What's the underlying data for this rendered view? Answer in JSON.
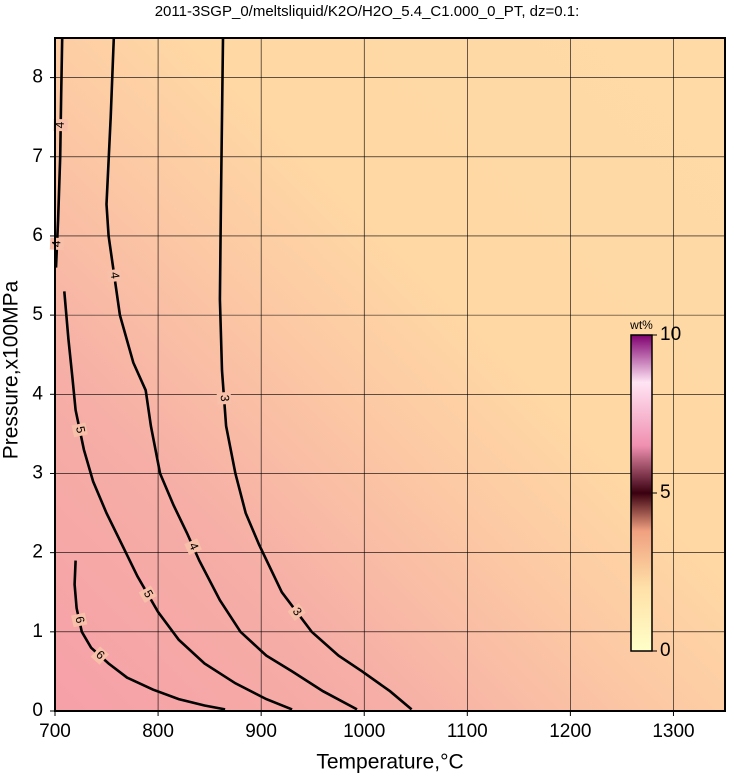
{
  "chart_data": {
    "type": "contour",
    "title": "2011-3SGP_0/meltsliquid/K2O/H2O_5.4_C1.000_0_PT, dz=0.1:",
    "x_label": "Temperature,°C",
    "y_label": "Pressure,x100MPa",
    "xlim": [
      700,
      1350
    ],
    "ylim": [
      0,
      8.5
    ],
    "xticks": [
      700,
      800,
      900,
      1000,
      1100,
      1200,
      1300
    ],
    "yticks": [
      0,
      1,
      2,
      3,
      4,
      5,
      6,
      7,
      8
    ],
    "grid": true,
    "color": "#000000",
    "colorbar": {
      "label": "wt%",
      "lim": [
        0,
        10
      ],
      "ticks": [
        0,
        5,
        10
      ]
    },
    "contours": [
      {
        "level": 3,
        "x": [
          863,
          862,
          861,
          860,
          862,
          866,
          875,
          885,
          898,
          920,
          949,
          975,
          998,
          1025,
          1046
        ],
        "y": [
          8.5,
          7.5,
          6.5,
          5.2,
          4.3,
          3.6,
          3.0,
          2.5,
          2.1,
          1.5,
          1.0,
          0.7,
          0.5,
          0.25,
          0.02
        ]
      },
      {
        "level": 4,
        "x": [
          757,
          754,
          750,
          752,
          763,
          776,
          788,
          793,
          802,
          815,
          828,
          840,
          860,
          880,
          905,
          930,
          960,
          993
        ],
        "y": [
          8.5,
          7.5,
          6.4,
          6.0,
          5.0,
          4.4,
          4.05,
          3.6,
          3.0,
          2.6,
          2.25,
          1.9,
          1.4,
          1.0,
          0.7,
          0.5,
          0.25,
          0.02
        ]
      },
      {
        "level": 4,
        "x": [
          707,
          706,
          705,
          703,
          701
        ],
        "y": [
          8.5,
          7.8,
          7.0,
          6.2,
          5.6
        ]
      },
      {
        "level": 5,
        "x": [
          709,
          713,
          717,
          720,
          728,
          737,
          750,
          765,
          780,
          800,
          820,
          845,
          875,
          905,
          930
        ],
        "y": [
          5.3,
          4.7,
          4.2,
          3.8,
          3.3,
          2.9,
          2.5,
          2.1,
          1.7,
          1.25,
          0.9,
          0.6,
          0.35,
          0.15,
          0.02
        ]
      },
      {
        "level": 6,
        "x": [
          720,
          719,
          721,
          726,
          735,
          752,
          770,
          795,
          820,
          845,
          865
        ],
        "y": [
          1.9,
          1.6,
          1.3,
          1.0,
          0.8,
          0.6,
          0.42,
          0.27,
          0.15,
          0.07,
          0.02
        ]
      }
    ]
  }
}
